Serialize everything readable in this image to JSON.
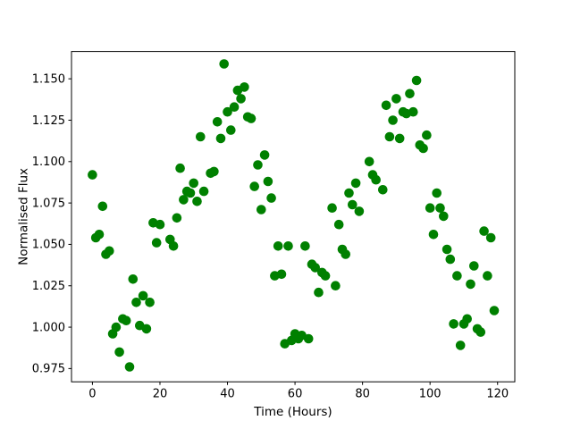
{
  "figure": {
    "background": "#ffffff",
    "frame_color": "#000000"
  },
  "chart_data": {
    "type": "scatter",
    "title": "",
    "xlabel": "Time (Hours)",
    "ylabel": "Normalised Flux",
    "marker_color": "#008000",
    "marker_shape": "filled-circle",
    "grid": false,
    "legend_position": "none",
    "xlim": [
      -6.2,
      125.1
    ],
    "ylim": [
      0.967,
      1.1665
    ],
    "xticks": [
      0,
      20,
      40,
      60,
      80,
      100,
      120
    ],
    "xtick_labels": [
      "0",
      "20",
      "40",
      "60",
      "80",
      "100",
      "120"
    ],
    "yticks": [
      0.975,
      1.0,
      1.025,
      1.05,
      1.075,
      1.1,
      1.125,
      1.15
    ],
    "ytick_labels": [
      "0.975",
      "1.000",
      "1.025",
      "1.050",
      "1.075",
      "1.100",
      "1.125",
      "1.150"
    ],
    "x": [
      0,
      1,
      2,
      3,
      4,
      5,
      6,
      7,
      8,
      9,
      10,
      11,
      12,
      13,
      14,
      15,
      16,
      17,
      18,
      19,
      20,
      23,
      24,
      25,
      26,
      27,
      28,
      29,
      30,
      31,
      32,
      33,
      35,
      36,
      37,
      38,
      39,
      40,
      41,
      42,
      43,
      44,
      45,
      46,
      47,
      48,
      49,
      50,
      51,
      52,
      53,
      54,
      55,
      56,
      57,
      58,
      59,
      60,
      61,
      62,
      63,
      64,
      65,
      66,
      67,
      68,
      69,
      71,
      72,
      73,
      74,
      75,
      76,
      77,
      78,
      79,
      82,
      83,
      84,
      86,
      87,
      88,
      89,
      90,
      91,
      92,
      93,
      94,
      95,
      96,
      97,
      98,
      99,
      100,
      101,
      102,
      103,
      104,
      105,
      106,
      107,
      108,
      109,
      110,
      111,
      112,
      113,
      114,
      115,
      116,
      117,
      118,
      119
    ],
    "y": [
      1.092,
      1.054,
      1.056,
      1.073,
      1.044,
      1.046,
      0.996,
      1.0,
      0.985,
      1.005,
      1.004,
      0.976,
      1.029,
      1.015,
      1.001,
      1.019,
      0.999,
      1.015,
      1.063,
      1.051,
      1.062,
      1.053,
      1.049,
      1.066,
      1.096,
      1.077,
      1.082,
      1.081,
      1.087,
      1.076,
      1.115,
      1.082,
      1.093,
      1.094,
      1.124,
      1.114,
      1.159,
      1.13,
      1.119,
      1.133,
      1.143,
      1.138,
      1.145,
      1.127,
      1.126,
      1.085,
      1.098,
      1.071,
      1.104,
      1.088,
      1.078,
      1.031,
      1.049,
      1.032,
      0.99,
      1.049,
      0.992,
      0.996,
      0.993,
      0.995,
      1.049,
      0.993,
      1.038,
      1.036,
      1.021,
      1.033,
      1.031,
      1.072,
      1.025,
      1.062,
      1.047,
      1.044,
      1.081,
      1.074,
      1.087,
      1.07,
      1.1,
      1.092,
      1.089,
      1.083,
      1.134,
      1.115,
      1.125,
      1.138,
      1.114,
      1.13,
      1.129,
      1.141,
      1.13,
      1.149,
      1.11,
      1.108,
      1.116,
      1.072,
      1.056,
      1.081,
      1.072,
      1.067,
      1.047,
      1.041,
      1.002,
      1.031,
      0.989,
      1.002,
      1.005,
      1.026,
      1.037,
      0.999,
      0.997,
      1.058,
      1.031,
      1.054,
      1.01
    ]
  }
}
